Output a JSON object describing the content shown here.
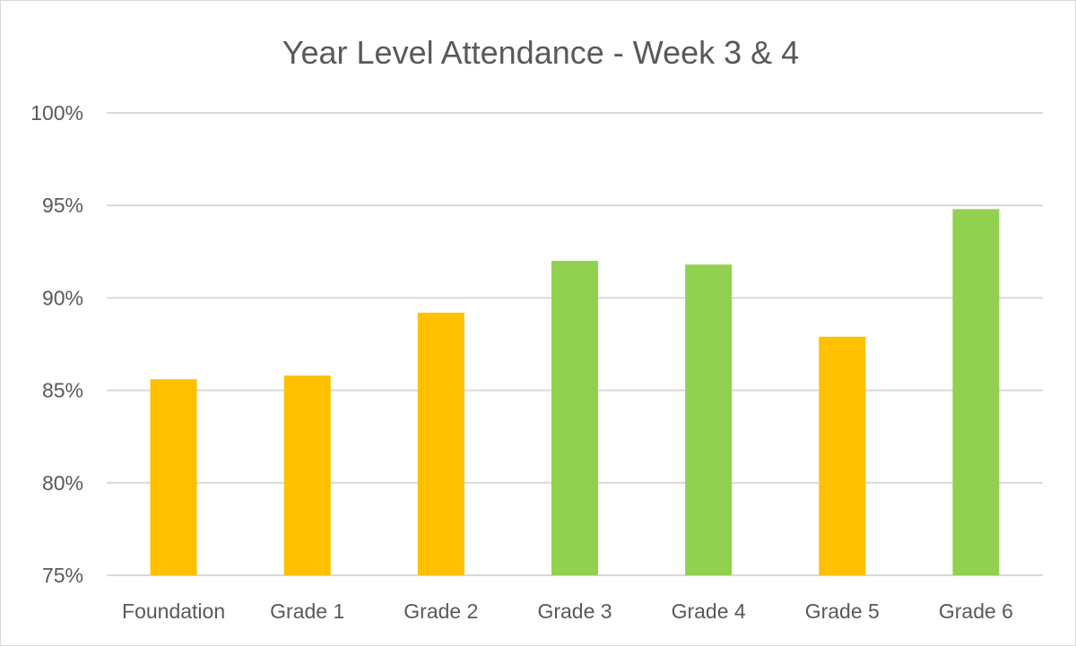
{
  "chart_data": {
    "type": "bar",
    "title": "Year Level Attendance - Week 3 & 4",
    "xlabel": "",
    "ylabel": "",
    "categories": [
      "Foundation",
      "Grade 1",
      "Grade 2",
      "Grade 3",
      "Grade 4",
      "Grade 5",
      "Grade 6"
    ],
    "values": [
      85.6,
      85.8,
      89.2,
      92.0,
      91.8,
      87.9,
      94.8
    ],
    "bar_colors": [
      "#FFC000",
      "#FFC000",
      "#FFC000",
      "#92D050",
      "#92D050",
      "#FFC000",
      "#92D050"
    ],
    "ylim": [
      75,
      100
    ],
    "yticks": [
      75,
      80,
      85,
      90,
      95,
      100
    ],
    "ytick_labels": [
      "75%",
      "80%",
      "85%",
      "90%",
      "95%",
      "100%"
    ],
    "grid": true,
    "legend": "none"
  }
}
